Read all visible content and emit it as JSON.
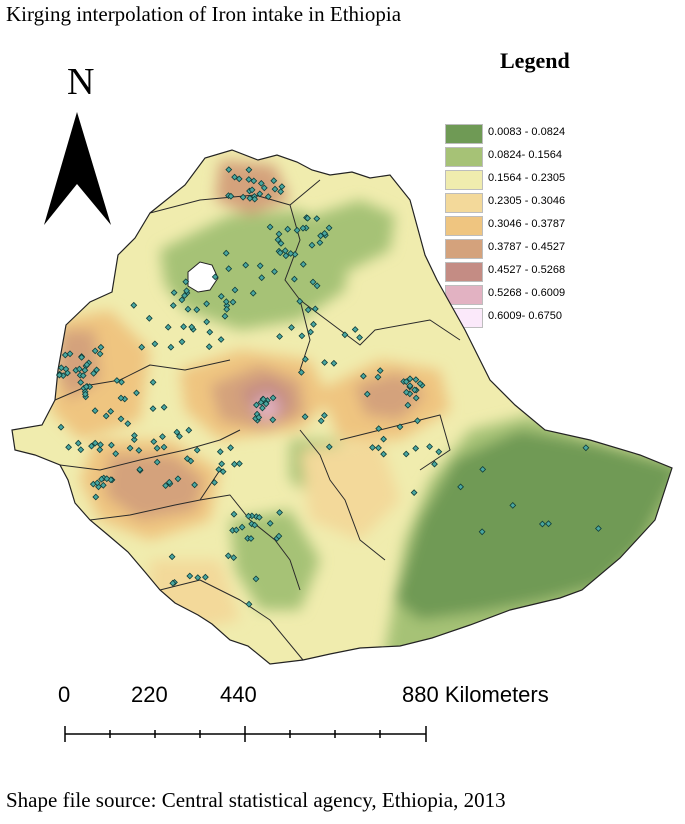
{
  "title": "Kirging interpolation of Iron intake in Ethiopia",
  "north_label": "N",
  "legend": {
    "title": "Legend",
    "items": [
      {
        "label": "0.0083 - 0.0824",
        "color": "#6f9a55"
      },
      {
        "label": "0.0824- 0.1564",
        "color": "#a6c276"
      },
      {
        "label": "0.1564 - 0.2305",
        "color": "#f0ecae"
      },
      {
        "label": "0.2305 - 0.3046",
        "color": "#f3d99a"
      },
      {
        "label": "0.3046 - 0.3787",
        "color": "#efc580"
      },
      {
        "label": "0.3787 - 0.4527",
        "color": "#d4a27c"
      },
      {
        "label": "0.4527 - 0.5268",
        "color": "#c48c84"
      },
      {
        "label": "0.5268 - 0.6009",
        "color": "#e2b2c2"
      },
      {
        "label": "0.6009- 0.6750",
        "color": "#fbe9fa"
      }
    ]
  },
  "scale_bar": {
    "labels": [
      "0",
      "220",
      "440",
      "880 Kilometers"
    ]
  },
  "source": "Shape file source: Central statistical agency, Ethiopia, 2013"
}
